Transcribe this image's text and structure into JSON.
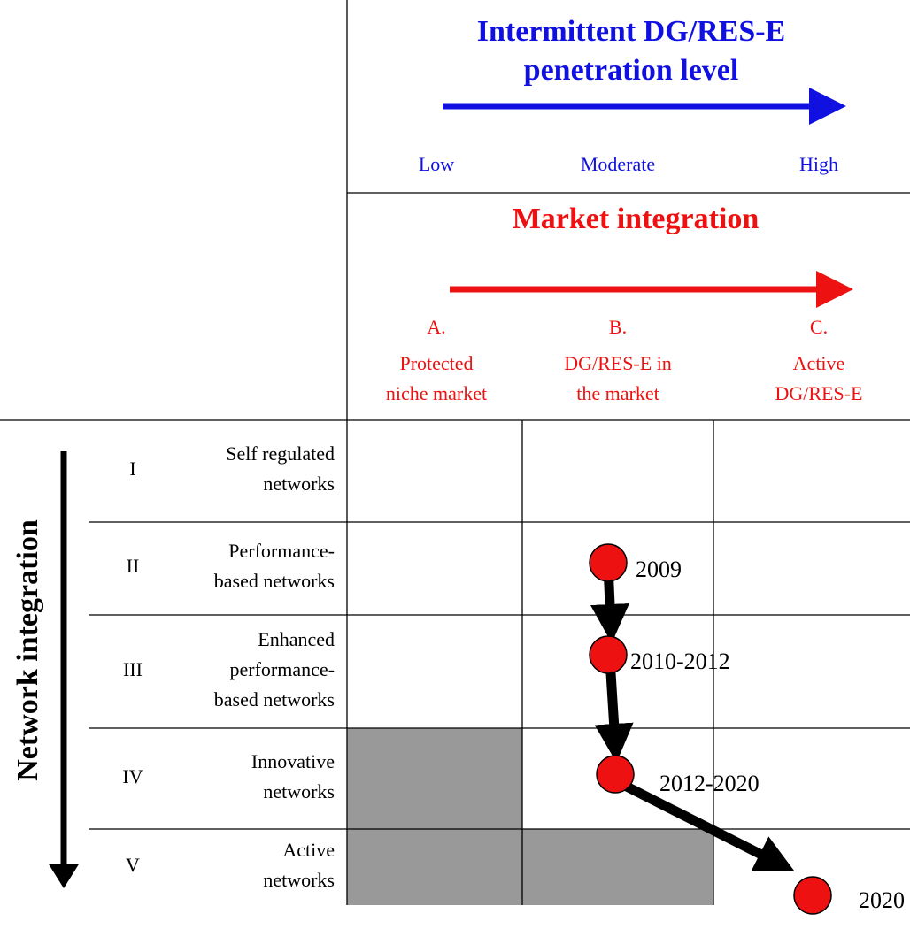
{
  "penetration": {
    "title_lines": [
      "Intermittent DG/RES-E",
      "penetration level"
    ],
    "levels": [
      "Low",
      "Moderate",
      "High"
    ]
  },
  "market": {
    "title": "Market integration",
    "stages": [
      {
        "letter": "A.",
        "lines": [
          "Protected",
          "niche market"
        ]
      },
      {
        "letter": "B.",
        "lines": [
          "DG/RES-E in",
          "the market"
        ]
      },
      {
        "letter": "C.",
        "lines": [
          "Active",
          "DG/RES-E"
        ]
      }
    ]
  },
  "network": {
    "title": "Network integration",
    "rows": [
      {
        "numeral": "I",
        "lines": [
          "Self regulated",
          "networks"
        ]
      },
      {
        "numeral": "II",
        "lines": [
          "Performance-",
          "based networks"
        ]
      },
      {
        "numeral": "III",
        "lines": [
          "Enhanced",
          "performance-",
          "based networks"
        ]
      },
      {
        "numeral": "IV",
        "lines": [
          "Innovative",
          "networks"
        ]
      },
      {
        "numeral": "V",
        "lines": [
          "Active",
          "networks"
        ]
      }
    ]
  },
  "milestones": [
    "2009",
    "2010-2012",
    "2012-2020",
    "2020"
  ]
}
